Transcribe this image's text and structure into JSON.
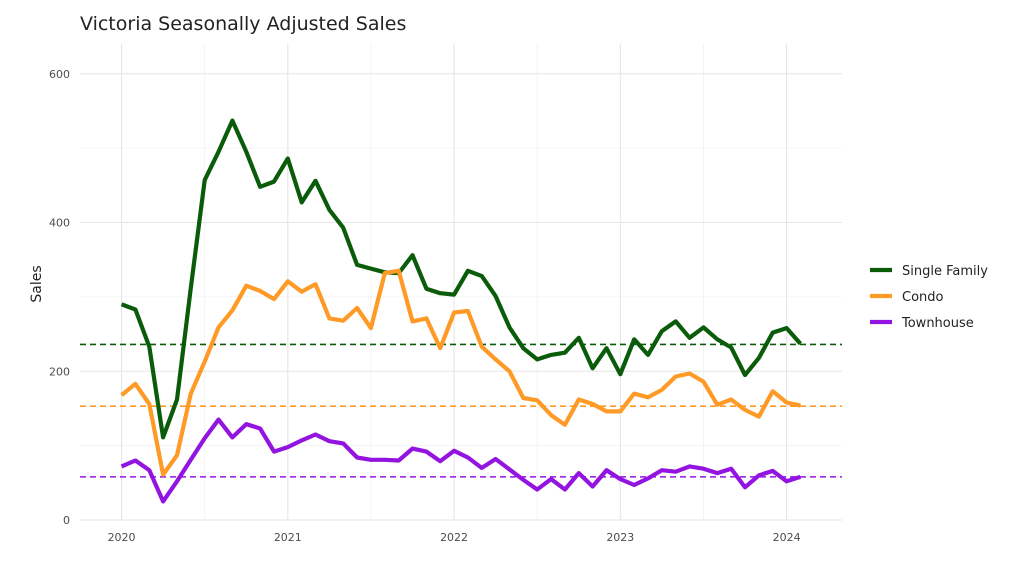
{
  "chart_data": {
    "type": "line",
    "title": "Victoria Seasonally Adjusted Sales",
    "xlabel": "",
    "ylabel": "Sales",
    "x_start": "2020-01",
    "x_ticks": [
      {
        "label": "2020",
        "value": "2020-01"
      },
      {
        "label": "2021",
        "value": "2021-01"
      },
      {
        "label": "2022",
        "value": "2022-01"
      },
      {
        "label": "2023",
        "value": "2023-01"
      },
      {
        "label": "2024",
        "value": "2024-01"
      }
    ],
    "xlim": [
      "2019-10",
      "2024-05"
    ],
    "y_ticks": [
      0,
      200,
      400,
      600
    ],
    "ylim": [
      0,
      640
    ],
    "grid": true,
    "legend_position": "right",
    "series": [
      {
        "name": "Single Family",
        "color": "#0a5c0a",
        "mean": 236,
        "values": [
          290,
          283,
          233,
          111,
          162,
          312,
          457,
          495,
          537,
          495,
          448,
          455,
          486,
          427,
          456,
          417,
          393,
          343,
          338,
          333,
          332,
          356,
          311,
          305,
          303,
          335,
          328,
          301,
          259,
          231,
          216,
          222,
          225,
          245,
          204,
          231,
          196,
          243,
          222,
          254,
          267,
          245,
          259,
          243,
          232,
          195,
          218,
          252,
          258,
          237
        ]
      },
      {
        "name": "Condo",
        "color": "#ff9a26",
        "mean": 153,
        "values": [
          168,
          183,
          156,
          61,
          87,
          170,
          213,
          259,
          282,
          315,
          308,
          297,
          321,
          307,
          317,
          271,
          268,
          285,
          258,
          332,
          335,
          267,
          271,
          231,
          279,
          281,
          233,
          216,
          200,
          164,
          161,
          141,
          128,
          162,
          156,
          146,
          146,
          170,
          165,
          175,
          193,
          197,
          186,
          155,
          162,
          148,
          139,
          173,
          158,
          154
        ]
      },
      {
        "name": "Townhouse",
        "color": "#9314e0",
        "mean": 58,
        "values": [
          72,
          80,
          67,
          25,
          52,
          81,
          110,
          135,
          111,
          129,
          123,
          92,
          98,
          107,
          115,
          106,
          103,
          84,
          81,
          81,
          80,
          96,
          92,
          79,
          93,
          84,
          70,
          82,
          68,
          54,
          41,
          55,
          41,
          63,
          45,
          67,
          55,
          47,
          56,
          67,
          65,
          72,
          69,
          63,
          69,
          44,
          60,
          66,
          52,
          58
        ]
      }
    ]
  }
}
